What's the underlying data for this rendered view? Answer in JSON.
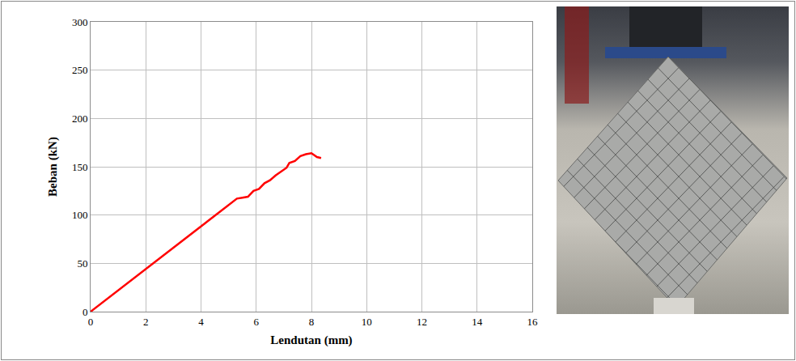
{
  "chart_data": {
    "type": "line",
    "xlabel": "Lendutan (mm)",
    "ylabel": "Beban (kN)",
    "x": [
      0,
      5.3,
      5.5,
      5.7,
      5.9,
      6.1,
      6.3,
      6.5,
      6.7,
      6.9,
      7.1,
      7.2,
      7.4,
      7.6,
      7.8,
      8.0,
      8.2,
      8.35
    ],
    "values": [
      0,
      117,
      118,
      119,
      125,
      127,
      133,
      136,
      141,
      145,
      149,
      154,
      156,
      161,
      163,
      164,
      160,
      159
    ],
    "color": "#ff0000",
    "xlim": [
      0,
      16
    ],
    "ylim": [
      0,
      300
    ],
    "xticks": [
      0,
      2,
      4,
      6,
      8,
      10,
      12,
      14,
      16
    ],
    "yticks": [
      0,
      50,
      100,
      150,
      200,
      250,
      300
    ],
    "grid": true
  }
}
